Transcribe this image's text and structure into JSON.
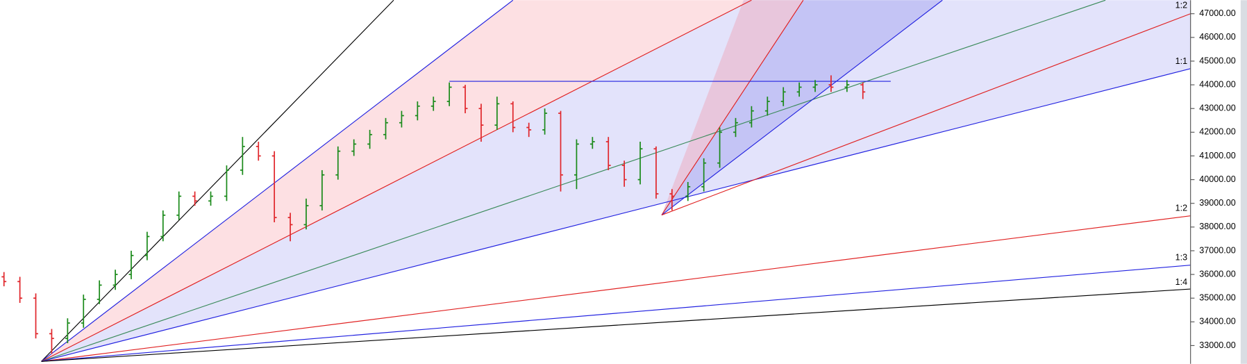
{
  "chart_data": {
    "type": "ohlc",
    "up_color": "#1a8a1a",
    "down_color": "#e0262b",
    "ylim": [
      32230,
      47570
    ],
    "yticks": [
      {
        "value": 47000,
        "label": "47000.00"
      },
      {
        "value": 46000,
        "label": "46000.00"
      },
      {
        "value": 45000,
        "label": "45000.00"
      },
      {
        "value": 44000,
        "label": "44000.00"
      },
      {
        "value": 43000,
        "label": "43000.00"
      },
      {
        "value": 42000,
        "label": "42000.00"
      },
      {
        "value": 41000,
        "label": "41000.00"
      },
      {
        "value": 40000,
        "label": "40000.00"
      },
      {
        "value": 39000,
        "label": "39000.00"
      },
      {
        "value": 38000,
        "label": "38000.00"
      },
      {
        "value": 37000,
        "label": "37000.00"
      },
      {
        "value": 36000,
        "label": "36000.00"
      },
      {
        "value": 35000,
        "label": "35000.00"
      },
      {
        "value": 34000,
        "label": "34000.00"
      },
      {
        "value": 33000,
        "label": "33000.00"
      }
    ],
    "fan_labels": [
      "1:2",
      "1:1",
      "1:2",
      "1:3",
      "1:4"
    ],
    "open": [
      35900,
      35700,
      35000,
      33500,
      33300,
      33950,
      34950,
      35550,
      36000,
      36800,
      37600,
      38500,
      39300,
      39100,
      39300,
      40400,
      41400,
      41000,
      38400,
      38100,
      38900,
      40200,
      41200,
      41500,
      41900,
      42400,
      42700,
      43100,
      43300,
      43900,
      43000,
      42300,
      43200,
      42200,
      42100,
      42800,
      40200,
      41500,
      41600,
      40600,
      40000,
      41300,
      39400,
      39300,
      39700,
      40700,
      42000,
      42400,
      42900,
      43300,
      43700,
      43900,
      44000,
      43900,
      44000
    ],
    "high": [
      36100,
      35900,
      35200,
      33700,
      34150,
      35150,
      35750,
      36200,
      37000,
      37800,
      38700,
      39500,
      39500,
      39500,
      40600,
      41800,
      41600,
      41200,
      38600,
      39200,
      40400,
      41400,
      41700,
      42100,
      42600,
      42900,
      43300,
      43500,
      44100,
      44000,
      43200,
      43500,
      43300,
      42400,
      43000,
      42900,
      41700,
      41800,
      41800,
      40800,
      41600,
      41400,
      39600,
      39900,
      40900,
      42200,
      42600,
      43100,
      43500,
      43900,
      44100,
      44200,
      44400,
      44200,
      44100
    ],
    "low": [
      35500,
      34800,
      33300,
      32650,
      33100,
      33750,
      34750,
      35350,
      35800,
      36600,
      37400,
      38300,
      38900,
      38900,
      39100,
      40200,
      40800,
      38200,
      37400,
      37900,
      38700,
      40000,
      41000,
      41300,
      41700,
      42200,
      42500,
      42900,
      43100,
      42800,
      41600,
      42100,
      42000,
      41800,
      41900,
      39500,
      39600,
      41300,
      40400,
      39700,
      39800,
      39200,
      38700,
      39100,
      39500,
      40500,
      41800,
      42200,
      42700,
      43100,
      43500,
      43700,
      43700,
      43700,
      43400
    ],
    "close": [
      35700,
      35000,
      33500,
      33300,
      33950,
      34950,
      35550,
      36000,
      36800,
      37600,
      38500,
      39300,
      39100,
      39300,
      40400,
      41400,
      41000,
      38400,
      38100,
      38900,
      40200,
      41200,
      41500,
      41900,
      42400,
      42700,
      43100,
      43300,
      43900,
      43000,
      42300,
      43200,
      42200,
      42100,
      42800,
      40200,
      41500,
      41600,
      40600,
      40000,
      41300,
      39400,
      39300,
      39700,
      40700,
      42000,
      42400,
      42900,
      43300,
      43700,
      43900,
      44000,
      43900,
      44000,
      43700
    ]
  }
}
